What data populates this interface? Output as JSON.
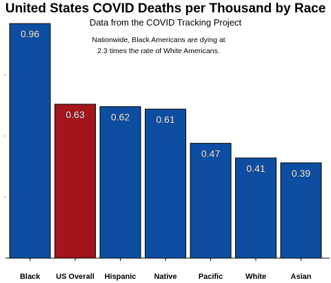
{
  "chart_data": {
    "type": "bar",
    "title": "United States COVID Deaths per Thousand by Race",
    "subtitle": "Data from the COVID Tracking Project",
    "annotation": [
      "Nationwide, Black Americans are dying at",
      "2.3 times the rate of White Americans."
    ],
    "categories": [
      "Black",
      "US Overall",
      "Hispanic",
      "Native",
      "Pacific",
      "White",
      "Asian"
    ],
    "values": [
      0.96,
      0.63,
      0.62,
      0.61,
      0.47,
      0.41,
      0.39
    ],
    "value_labels": [
      "0.96",
      "0.63",
      "0.62",
      "0.61",
      "0.47",
      "0.41",
      "0.39"
    ],
    "colors": [
      "#0d4ea2",
      "#a3141b",
      "#0d4ea2",
      "#0d4ea2",
      "#0d4ea2",
      "#0d4ea2",
      "#0d4ea2"
    ],
    "xlabel": "",
    "ylabel": "",
    "ylim": [
      0,
      1.0
    ],
    "grid": false,
    "legend": "none"
  }
}
